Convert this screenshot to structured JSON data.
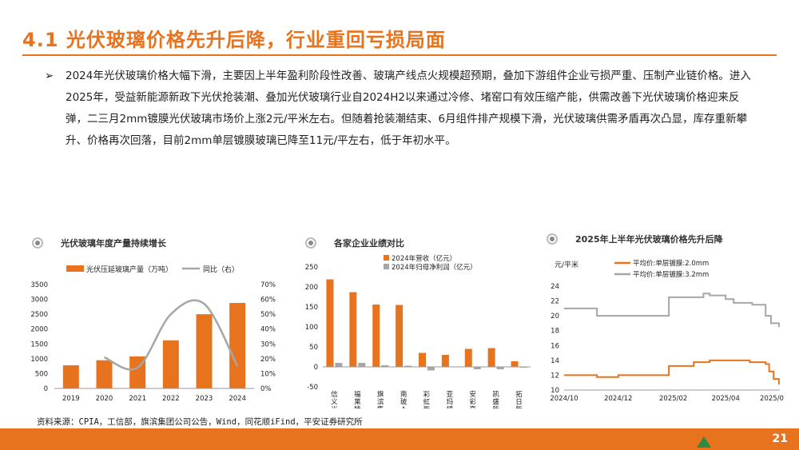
{
  "header": {
    "title": "4.1 光伏玻璃价格先升后降，行业重回亏损局面"
  },
  "bullet": {
    "arrow": "➢",
    "text": "2024年光伏玻璃价格大幅下滑，主要因上半年盈利阶段性改善、玻璃产线点火规模超预期，叠加下游组件企业亏损严重、压制产业链价格。进入2025年，受益新能源新政下光伏抢装潮、叠加光伏玻璃行业自2024H2以来通过冷修、堵窑口有效压缩产能，供需改善下光伏玻璃价格迎来反弹，二三月2mm镀膜光伏玻璃市场价上涨2元/平米左右。但随着抢装潮结束、6月组件排产规模下滑，光伏玻璃供需矛盾再次凸显，库存重新攀升、价格再次回落，目前2mm单层镀膜玻璃已降至11元/平左右，低于年初水平。"
  },
  "charts": {
    "c1_title": "光伏玻璃年度产量持续增长",
    "c2_title": "各家企业业绩对比",
    "c3_title": "2025年上半年光伏玻璃价格先升后降"
  },
  "source": "资料来源：CPIA，工信部，旗滨集团公司公告，Wind，同花顺iFind，平安证券研究所",
  "page_number": "21",
  "colors": {
    "accent": "#e8731e",
    "gray_series": "#a6a6a6",
    "brand_green": "#2d8a3e"
  },
  "chart_data": [
    {
      "type": "bar",
      "categories": [
        "2019",
        "2020",
        "2021",
        "2022",
        "2023",
        "2024"
      ],
      "series": [
        {
          "name": "光伏压延玻璃产量（万吨）",
          "type": "bar",
          "axis": "left",
          "values": [
            780,
            950,
            1080,
            1620,
            2500,
            2880
          ]
        },
        {
          "name": "同比（右）",
          "type": "line",
          "axis": "right",
          "values": [
            null,
            0.21,
            0.14,
            0.5,
            0.57,
            0.15
          ]
        }
      ],
      "ylim_left": [
        0,
        3500
      ],
      "yticks_left": [
        "0",
        "500",
        "1000",
        "1500",
        "2000",
        "2500",
        "3000",
        "3500"
      ],
      "ylim_right": [
        0,
        0.7
      ],
      "yticks_right": [
        "0%",
        "10%",
        "20%",
        "30%",
        "40%",
        "50%",
        "60%",
        "70%"
      ]
    },
    {
      "type": "bar",
      "categories": [
        "信义光能",
        "福莱特",
        "旗滨集团",
        "南玻A",
        "彩虹新能源",
        "亚玛顿",
        "安彩高科",
        "凯盛新能",
        "拓日新能"
      ],
      "series": [
        {
          "name": "2024年营收（亿元）",
          "values": [
            219,
            187,
            156,
            155,
            35,
            30,
            45,
            47,
            14
          ]
        },
        {
          "name": "2024年归母净利润（亿元）",
          "values": [
            10,
            10,
            4,
            3,
            -9,
            0.5,
            -6,
            -6,
            -2
          ]
        }
      ],
      "ylim": [
        -50,
        250
      ],
      "yticks": [
        "-50",
        "0",
        "50",
        "100",
        "150",
        "200",
        "250"
      ]
    },
    {
      "type": "line",
      "ylabel": "元/平米",
      "x_ticks": [
        "2024/10",
        "2024/12",
        "2025/02",
        "2025/04",
        "2025/0"
      ],
      "ylim": [
        10,
        24
      ],
      "yticks": [
        "10",
        "12",
        "14",
        "16",
        "18",
        "20",
        "22",
        "24"
      ],
      "series": [
        {
          "name": "平均价:单层镀膜:2.0mm",
          "x": [
            "2024/10/01",
            "2024/11/07",
            "2024/12/01",
            "2025/01/24",
            "2025/01/27",
            "2025/02/24",
            "2025/03/14",
            "2025/04/01",
            "2025/04/28",
            "2025/05/16",
            "2025/05/20",
            "2025/05/25",
            "2025/05/31"
          ],
          "values": [
            12,
            11.75,
            12,
            12,
            13.25,
            13.75,
            14,
            14,
            13.75,
            13.5,
            12.5,
            11.5,
            10.75
          ]
        },
        {
          "name": "平均价:单层镀膜:3.2mm",
          "x": [
            "2024/10/01",
            "2024/11/07",
            "2024/12/01",
            "2025/01/24",
            "2025/01/27",
            "2025/02/24",
            "2025/03/07",
            "2025/03/14",
            "2025/04/01",
            "2025/04/10",
            "2025/05/01",
            "2025/05/16",
            "2025/05/22",
            "2025/05/31"
          ],
          "values": [
            21,
            20,
            20,
            20,
            22.5,
            22.5,
            23,
            22.75,
            22.25,
            21.75,
            21.5,
            20,
            19,
            18.5
          ]
        }
      ]
    }
  ]
}
